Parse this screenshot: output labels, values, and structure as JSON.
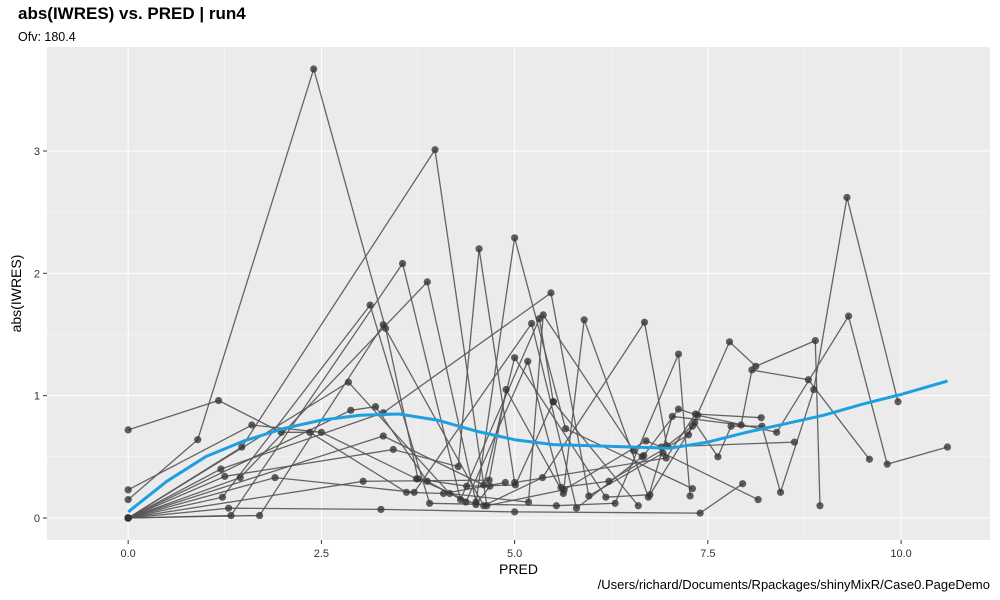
{
  "header": {
    "title": "abs(IWRES) vs. PRED | run4",
    "subtitle": "Ofv: 180.4"
  },
  "footer": {
    "caption": "/Users/richard/Documents/Rpackages/shinyMixR/Case0.PageDemo"
  },
  "colors": {
    "panel_bg": "#ebebeb",
    "grid_major": "#ffffff",
    "points": "#333333",
    "lines": "#555555",
    "smooth": "#1e9fe0"
  },
  "chart_data": {
    "type": "scatter",
    "title": "abs(IWRES) vs. PRED | run4",
    "subtitle": "Ofv: 180.4",
    "xlabel": "PRED",
    "ylabel": "abs(IWRES)",
    "xlim": [
      -1.05,
      11.15
    ],
    "ylim": [
      -0.18,
      3.85
    ],
    "xticks": [
      0,
      2.5,
      5,
      7.5,
      10
    ],
    "xtick_labels": [
      "0.0",
      "2.5",
      "5.0",
      "7.5",
      "10.0"
    ],
    "yticks": [
      0,
      1,
      2,
      3
    ],
    "ytick_labels": [
      "0",
      "1",
      "2",
      "3"
    ],
    "grid": true,
    "individuals": [
      [
        [
          0,
          0.72
        ],
        [
          1.17,
          0.96
        ],
        [
          1.98,
          0.7
        ],
        [
          2.35,
          0.7
        ],
        [
          3.6,
          0.21
        ],
        [
          4.08,
          0.2
        ],
        [
          4.88,
          0.29
        ]
      ],
      [
        [
          0,
          0.23
        ],
        [
          1.6,
          0.76
        ],
        [
          2.5,
          0.7
        ],
        [
          3.73,
          0.32
        ],
        [
          4.38,
          0.26
        ],
        [
          5.01,
          0.27
        ],
        [
          5.5,
          0.95
        ]
      ],
      [
        [
          0,
          0.15
        ],
        [
          0.9,
          0.64
        ],
        [
          2.4,
          3.67
        ],
        [
          3.33,
          1.55
        ],
        [
          3.75,
          0.32
        ],
        [
          4.5,
          0.11
        ],
        [
          4.68,
          0.26
        ]
      ],
      [
        [
          0,
          0
        ],
        [
          1.3,
          0.08
        ],
        [
          3.27,
          0.07
        ],
        [
          5.0,
          0.05
        ],
        [
          7.4,
          0.04
        ],
        [
          7.95,
          0.28
        ]
      ],
      [
        [
          0,
          0
        ],
        [
          1.7,
          0.02
        ],
        [
          3.3,
          1.58
        ],
        [
          4.6,
          0.1
        ],
        [
          5.36,
          0.33
        ],
        [
          6.68,
          1.6
        ],
        [
          6.97,
          0.59
        ],
        [
          7.3,
          0.75
        ]
      ],
      [
        [
          0,
          0
        ],
        [
          1.22,
          0.17
        ],
        [
          3.13,
          1.74
        ],
        [
          3.9,
          0.12
        ],
        [
          5.54,
          0.1
        ],
        [
          6.3,
          0.12
        ],
        [
          7.12,
          1.34
        ],
        [
          7.27,
          0.18
        ]
      ],
      [
        [
          0,
          0
        ],
        [
          1.33,
          0.02
        ],
        [
          3.55,
          2.08
        ],
        [
          4.3,
          0.15
        ],
        [
          5.32,
          1.63
        ],
        [
          5.5,
          0.95
        ],
        [
          6.6,
          0.1
        ]
      ],
      [
        [
          0,
          0
        ],
        [
          1.45,
          0.33
        ],
        [
          3.87,
          1.93
        ],
        [
          4.5,
          0.13
        ],
        [
          5.0,
          2.29
        ],
        [
          5.66,
          0.73
        ],
        [
          7.3,
          0.24
        ]
      ],
      [
        [
          0,
          0
        ],
        [
          1.47,
          0.58
        ],
        [
          3.97,
          3.01
        ],
        [
          4.64,
          0.1
        ],
        [
          5.64,
          0.23
        ],
        [
          6.7,
          0.63
        ],
        [
          6.9,
          0.58
        ],
        [
          8.62,
          0.62
        ]
      ],
      [
        [
          0,
          0
        ],
        [
          1.25,
          0.34
        ],
        [
          3.43,
          0.56
        ],
        [
          4.27,
          0.42
        ],
        [
          4.54,
          2.2
        ],
        [
          5.0,
          0.29
        ],
        [
          6.96,
          0.49
        ],
        [
          7.34,
          0.85
        ],
        [
          8.19,
          0.82
        ]
      ],
      [
        [
          0,
          0
        ],
        [
          2.85,
          1.11
        ],
        [
          4.16,
          0.2
        ],
        [
          5.18,
          0.13
        ],
        [
          5.37,
          1.66
        ],
        [
          6.54,
          0.55
        ],
        [
          6.65,
          0.5
        ]
      ],
      [
        [
          0,
          0
        ],
        [
          3.3,
          0.67
        ],
        [
          4.6,
          0.27
        ],
        [
          5.0,
          1.31
        ],
        [
          6.18,
          0.17
        ],
        [
          6.75,
          0.19
        ],
        [
          7.33,
          0.78
        ],
        [
          7.63,
          0.5
        ],
        [
          7.8,
          0.75
        ],
        [
          8.2,
          0.75
        ],
        [
          8.44,
          0.21
        ],
        [
          8.87,
          1.05
        ],
        [
          9.3,
          2.62
        ],
        [
          9.96,
          0.95
        ]
      ],
      [
        [
          0,
          0
        ],
        [
          3.04,
          0.3
        ],
        [
          4.67,
          0.31
        ],
        [
          4.89,
          1.05
        ],
        [
          5.63,
          0.2
        ],
        [
          5.9,
          1.62
        ],
        [
          6.73,
          0.17
        ],
        [
          7.04,
          0.83
        ],
        [
          7.93,
          0.76
        ],
        [
          8.07,
          1.21
        ],
        [
          8.8,
          1.13
        ],
        [
          9.59,
          0.48
        ]
      ],
      [
        [
          0,
          0
        ],
        [
          2.88,
          0.88
        ],
        [
          3.2,
          0.91
        ],
        [
          3.87,
          0.3
        ],
        [
          4.37,
          0.13
        ],
        [
          5.17,
          1.28
        ],
        [
          5.6,
          0.25
        ],
        [
          6.22,
          0.3
        ],
        [
          7.25,
          0.68
        ],
        [
          7.78,
          1.44
        ],
        [
          8.12,
          1.24
        ],
        [
          8.89,
          1.45
        ],
        [
          8.95,
          0.1
        ]
      ],
      [
        [
          0,
          0
        ],
        [
          1.9,
          0.33
        ],
        [
          3.7,
          0.21
        ],
        [
          5.22,
          1.59
        ],
        [
          5.8,
          0.08
        ],
        [
          6.67,
          0.51
        ],
        [
          7.12,
          0.89
        ],
        [
          7.37,
          0.84
        ],
        [
          8.39,
          0.7
        ],
        [
          9.32,
          1.65
        ],
        [
          9.82,
          0.44
        ],
        [
          10.6,
          0.58
        ]
      ],
      [
        [
          0,
          0
        ],
        [
          1.2,
          0.4
        ],
        [
          3.3,
          0.86
        ],
        [
          5.47,
          1.84
        ],
        [
          5.96,
          0.18
        ],
        [
          6.92,
          0.53
        ],
        [
          8.15,
          0.15
        ]
      ]
    ],
    "smooth": [
      [
        0,
        0.05
      ],
      [
        0.5,
        0.3
      ],
      [
        1.0,
        0.5
      ],
      [
        1.5,
        0.63
      ],
      [
        2.0,
        0.73
      ],
      [
        2.5,
        0.8
      ],
      [
        3.0,
        0.84
      ],
      [
        3.5,
        0.85
      ],
      [
        4.0,
        0.8
      ],
      [
        4.5,
        0.71
      ],
      [
        5.0,
        0.64
      ],
      [
        5.5,
        0.6
      ],
      [
        6.0,
        0.59
      ],
      [
        6.5,
        0.58
      ],
      [
        7.0,
        0.57
      ],
      [
        7.5,
        0.62
      ],
      [
        8.0,
        0.7
      ],
      [
        8.5,
        0.77
      ],
      [
        9.0,
        0.84
      ],
      [
        9.5,
        0.93
      ],
      [
        10.0,
        1.01
      ],
      [
        10.6,
        1.12
      ]
    ]
  }
}
